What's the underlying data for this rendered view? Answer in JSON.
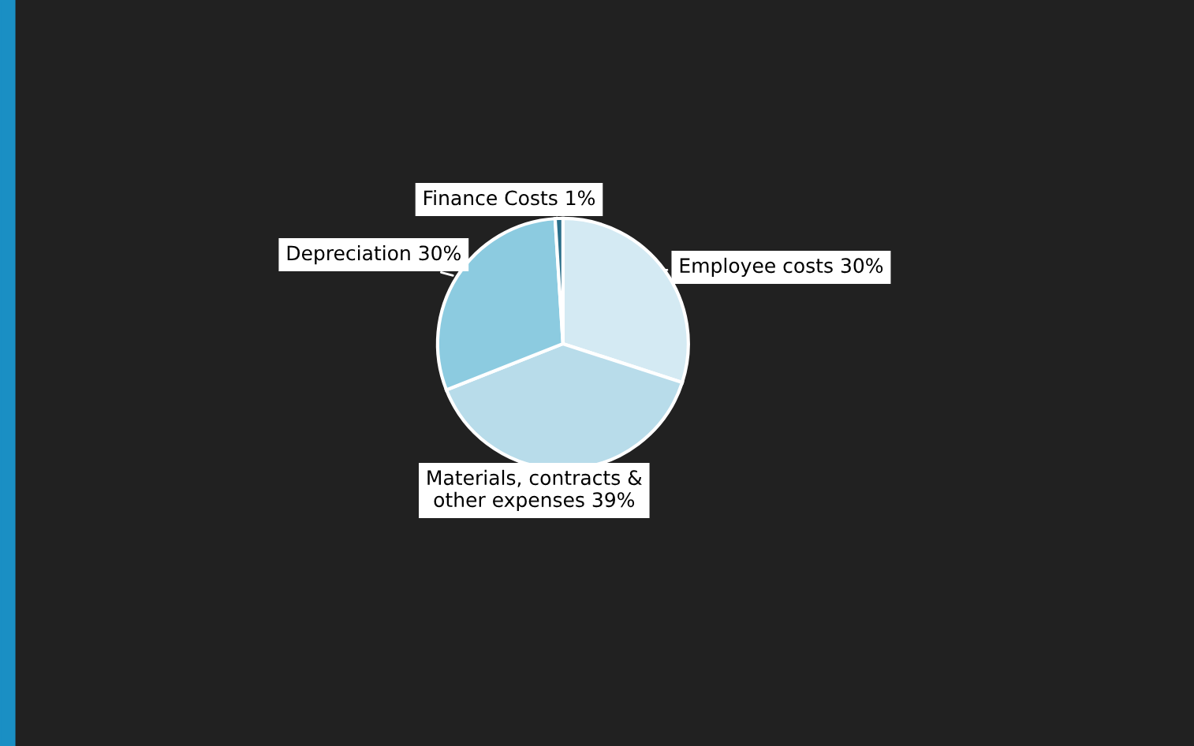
{
  "chart_data": {
    "type": "pie",
    "categories": [
      "Employee costs",
      "Materials, contracts &\nother expenses",
      "Depreciation",
      "Finance Costs"
    ],
    "values": [
      30,
      39,
      30,
      1
    ],
    "value_labels": [
      "30%",
      "39%",
      "30%",
      "1%"
    ],
    "colors": [
      "#d4eaf3",
      "#b8dcea",
      "#8ccbe0",
      "#2a6f8a"
    ]
  }
}
